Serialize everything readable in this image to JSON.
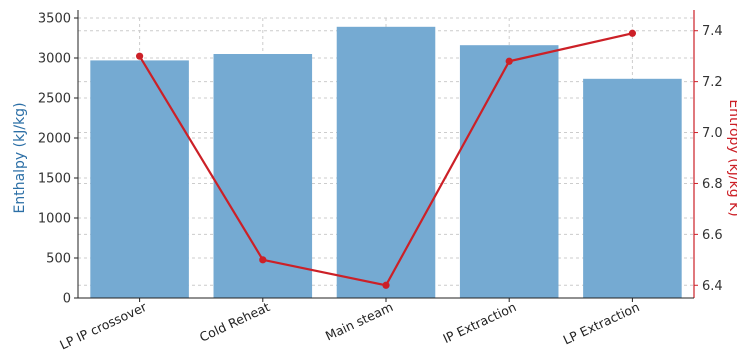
{
  "chart_data": {
    "type": "bar",
    "categories": [
      "LP IP crossover",
      "Cold Reheat",
      "Main steam",
      "IP Extraction",
      "LP Extraction"
    ],
    "series": [
      {
        "name": "Enthalpy (kJ/kg)",
        "type": "bar",
        "axis": "left",
        "values": [
          2970,
          3050,
          3390,
          3160,
          2740
        ],
        "color": "#75aad2"
      },
      {
        "name": "Entropy (kJ/kg K)",
        "type": "line",
        "axis": "right",
        "values": [
          7.3,
          6.5,
          6.4,
          7.28,
          7.39
        ],
        "color": "#cc2027"
      }
    ],
    "ylabel": "Enthalpy (kJ/kg)",
    "y2label": "Entropy (kJ/kg K)",
    "ylim": [
      0,
      3500
    ],
    "y2lim": [
      6.35,
      7.45
    ],
    "yticks": [
      "0",
      "500",
      "1000",
      "1500",
      "2000",
      "2500",
      "3000",
      "3500"
    ],
    "y2ticks": [
      "6.4",
      "6.6",
      "6.8",
      "7.0",
      "7.2",
      "7.4"
    ],
    "grid": true,
    "colors": {
      "left_axis": "#2c6fa6",
      "right_axis": "#cc2027"
    }
  }
}
